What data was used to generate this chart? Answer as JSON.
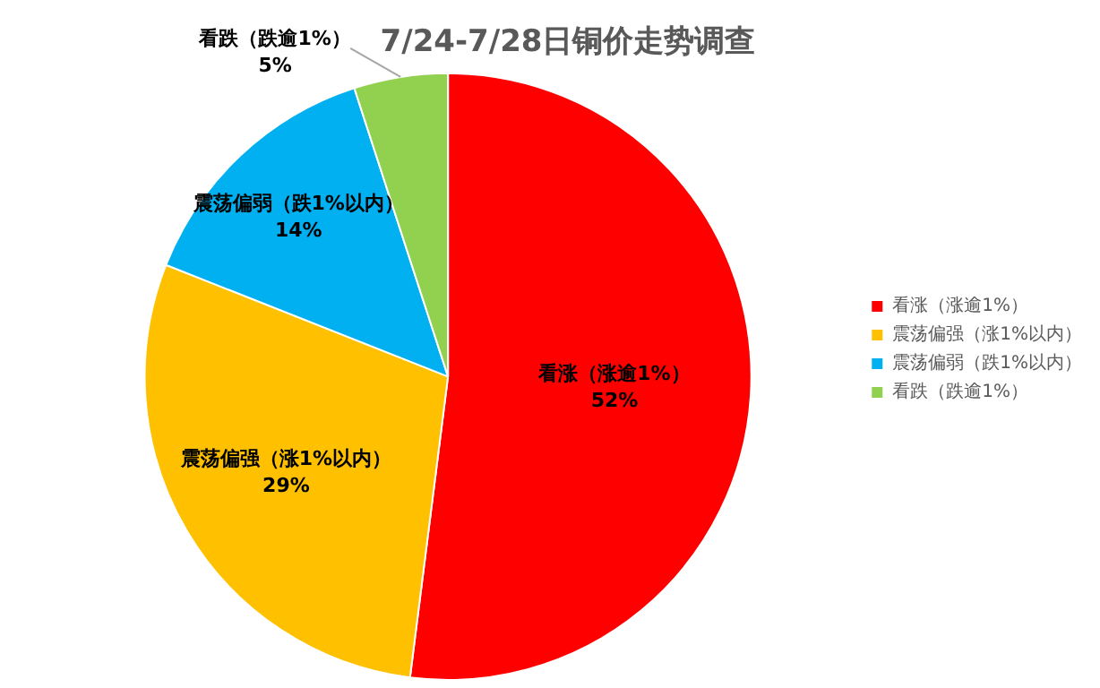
{
  "chart_data": {
    "type": "pie",
    "title": "7/24-7/28日铜价走势调查",
    "categories": [
      "看涨（涨逾1%）",
      "震荡偏强（涨1%以内）",
      "震荡偏弱（跌1%以内）",
      "看跌（跌逾1%）"
    ],
    "values": [
      52,
      29,
      14,
      5
    ],
    "colors": [
      "#ff0000",
      "#ffc000",
      "#00b0f0",
      "#92d050"
    ],
    "value_labels": [
      "52%",
      "29%",
      "14%",
      "5%"
    ],
    "legend": "right"
  }
}
